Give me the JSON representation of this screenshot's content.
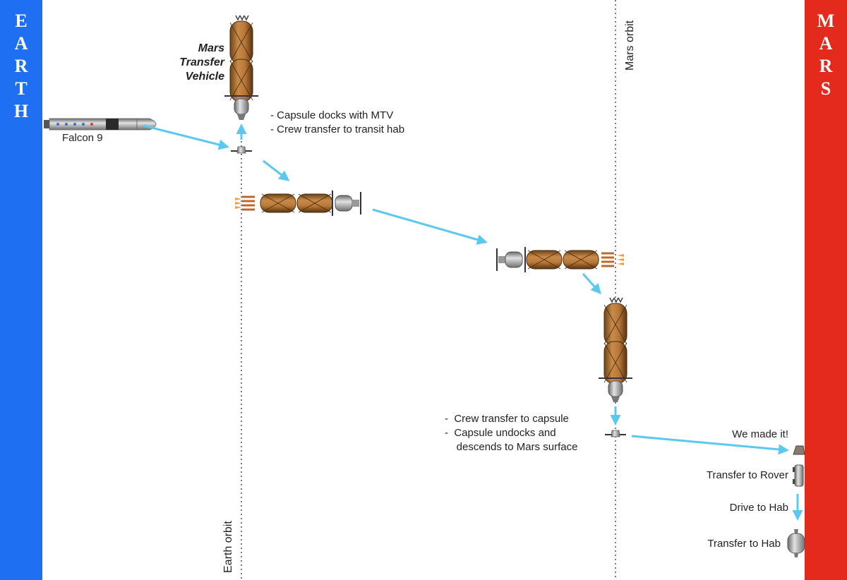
{
  "earth_band": {
    "letters": [
      "E",
      "A",
      "R",
      "T",
      "H"
    ],
    "color": "#1f6ff2"
  },
  "mars_band": {
    "letters": [
      "M",
      "A",
      "R",
      "S"
    ],
    "color": "#e42a1d"
  },
  "orbits": {
    "earth": "Earth orbit",
    "mars": "Mars orbit"
  },
  "labels": {
    "falcon9": "Falcon 9",
    "mtv_title": [
      "Mars",
      "Transfer",
      "Vehicle"
    ],
    "dock_notes": [
      "- Capsule docks with MTV",
      "- Crew transfer to transit hab"
    ],
    "descent_notes": [
      "-  Crew transfer to capsule",
      "-  Capsule undocks and",
      "    descends to Mars surface"
    ],
    "made_it": "We made it!",
    "rover": "Transfer to Rover",
    "drive": "Drive to Hab",
    "hab": "Transfer to Hab"
  },
  "colors": {
    "arrow": "#5bc8f0",
    "tank": "#b8783a",
    "tank_dark": "#6d4418",
    "metal": "#9a9a9a",
    "flame": "#f0a040"
  },
  "icons": [
    "falcon9-rocket-icon",
    "mtv-vertical-icon",
    "capsule-icon",
    "mtv-horizontal-icon",
    "rover-icon",
    "hab-icon"
  ]
}
